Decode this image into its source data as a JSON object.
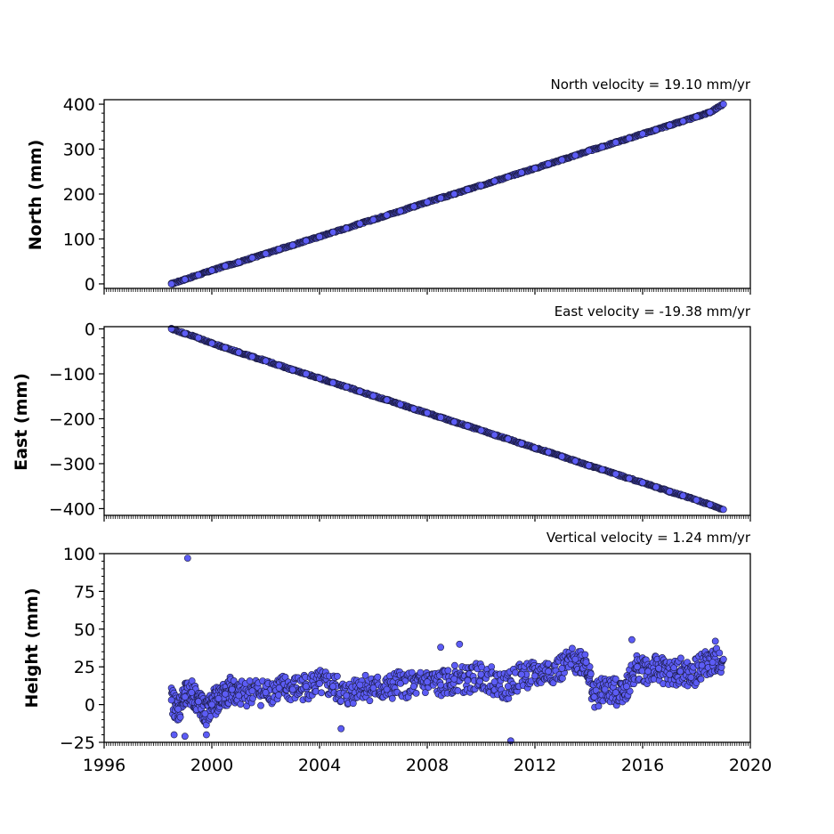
{
  "colors": {
    "marker_fill": "#5c5cf5",
    "marker_edge": "#1a1a40",
    "axes": "#000000"
  },
  "chart_data": [
    {
      "type": "scatter",
      "annotation": "North velocity = 19.10 mm/yr",
      "ylabel": "North (mm)",
      "xlabel": "",
      "xlim": [
        1996,
        2020
      ],
      "ylim": [
        -10,
        410
      ],
      "yticks": [
        0,
        100,
        200,
        300,
        400
      ],
      "ytick_labels": [
        "0",
        "100",
        "200",
        "300",
        "400"
      ],
      "grid": false,
      "series": [
        {
          "x": [
            1998.5,
            1999.0,
            1999.5,
            2000.0,
            2000.5,
            2001.0,
            2001.5,
            2002.0,
            2002.5,
            2003.0,
            2003.5,
            2004.0,
            2004.5,
            2005.0,
            2005.5,
            2006.0,
            2006.5,
            2007.0,
            2007.5,
            2008.0,
            2008.5,
            2009.0,
            2009.5,
            2010.0,
            2010.5,
            2011.0,
            2011.5,
            2012.0,
            2012.5,
            2013.0,
            2013.5,
            2014.0,
            2014.5,
            2015.0,
            2015.5,
            2016.0,
            2016.5,
            2017.0,
            2017.5,
            2018.0,
            2018.5,
            2019.0
          ],
          "y": [
            0,
            10,
            20,
            30,
            40,
            48,
            58,
            67,
            77,
            86,
            96,
            105,
            115,
            124,
            134,
            143,
            153,
            162,
            172,
            182,
            191,
            200,
            210,
            219,
            229,
            238,
            248,
            257,
            267,
            276,
            286,
            296,
            305,
            315,
            324,
            334,
            343,
            353,
            362,
            372,
            382,
            400
          ]
        }
      ]
    },
    {
      "type": "scatter",
      "annotation": "East velocity = -19.38 mm/yr",
      "ylabel": "East (mm)",
      "xlabel": "",
      "xlim": [
        1996,
        2020
      ],
      "ylim": [
        -415,
        5
      ],
      "yticks": [
        0,
        -100,
        -200,
        -300,
        -400
      ],
      "ytick_labels": [
        "0",
        "−100",
        "−200",
        "−300",
        "−400"
      ],
      "grid": false,
      "series": [
        {
          "x": [
            1998.5,
            1999.0,
            1999.5,
            2000.0,
            2000.5,
            2001.0,
            2001.5,
            2002.0,
            2002.5,
            2003.0,
            2003.5,
            2004.0,
            2004.5,
            2005.0,
            2005.5,
            2006.0,
            2006.5,
            2007.0,
            2007.5,
            2008.0,
            2008.5,
            2009.0,
            2009.5,
            2010.0,
            2010.5,
            2011.0,
            2011.5,
            2012.0,
            2012.5,
            2013.0,
            2013.5,
            2014.0,
            2014.5,
            2015.0,
            2015.5,
            2016.0,
            2016.5,
            2017.0,
            2017.5,
            2018.0,
            2018.5,
            2019.0
          ],
          "y": [
            0,
            -10,
            -20,
            -32,
            -42,
            -52,
            -62,
            -71,
            -81,
            -91,
            -100,
            -110,
            -120,
            -129,
            -139,
            -149,
            -158,
            -168,
            -178,
            -187,
            -197,
            -207,
            -216,
            -226,
            -236,
            -245,
            -255,
            -265,
            -274,
            -284,
            -294,
            -304,
            -313,
            -323,
            -333,
            -342,
            -352,
            -362,
            -371,
            -381,
            -391,
            -402
          ]
        }
      ]
    },
    {
      "type": "scatter",
      "annotation": "Vertical velocity = 1.24 mm/yr",
      "ylabel": "Height (mm)",
      "xlabel": "",
      "xlim": [
        1996,
        2020
      ],
      "ylim": [
        -25,
        100
      ],
      "yticks": [
        -25,
        0,
        25,
        50,
        75,
        100
      ],
      "ytick_labels": [
        "−25",
        "0",
        "25",
        "50",
        "75",
        "100"
      ],
      "xticks": [
        1996,
        2000,
        2004,
        2008,
        2012,
        2016,
        2020
      ],
      "xtick_labels": [
        "1996",
        "2000",
        "2004",
        "2008",
        "2012",
        "2016",
        "2020"
      ],
      "grid": false,
      "series": [
        {
          "x": [
            1998.5,
            1998.75,
            1999.0,
            1999.25,
            1999.5,
            1999.75,
            2000.0,
            2000.25,
            2000.5,
            2000.75,
            2001.0,
            2001.5,
            2002.0,
            2002.5,
            2003.0,
            2003.5,
            2004.0,
            2004.5,
            2005.0,
            2005.5,
            2006.0,
            2006.5,
            2007.0,
            2007.5,
            2008.0,
            2008.5,
            2009.0,
            2009.5,
            2010.0,
            2010.5,
            2011.0,
            2011.5,
            2012.0,
            2012.5,
            2013.0,
            2013.5,
            2013.9,
            2014.2,
            2014.6,
            2015.0,
            2015.4,
            2015.8,
            2016.2,
            2016.6,
            2017.0,
            2017.4,
            2017.8,
            2018.2,
            2018.6,
            2019.0
          ],
          "y": [
            3,
            -3,
            5,
            8,
            2,
            -6,
            0,
            4,
            7,
            10,
            6,
            9,
            8,
            11,
            10,
            12,
            14,
            12,
            6,
            13,
            11,
            10,
            14,
            12,
            15,
            13,
            17,
            16,
            20,
            15,
            12,
            20,
            19,
            22,
            24,
            30,
            28,
            5,
            10,
            8,
            12,
            25,
            22,
            24,
            20,
            22,
            18,
            26,
            28,
            30
          ]
        },
        {
          "x": [
            1999.1,
            1998.6,
            1999.0,
            1999.8,
            2004.8,
            2011.1,
            2008.5,
            2009.2,
            2015.6,
            2018.7
          ],
          "y": [
            97,
            -20,
            -21,
            -20,
            -16,
            -24,
            38,
            40,
            43,
            42
          ]
        }
      ]
    }
  ]
}
